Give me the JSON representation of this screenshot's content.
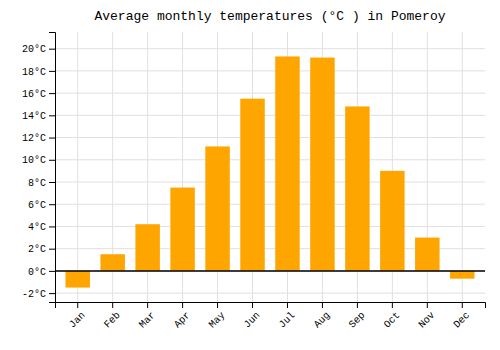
{
  "chart_data": {
    "type": "bar",
    "title": "Average monthly temperatures (°C ) in Pomeroy",
    "categories": [
      "Jan",
      "Feb",
      "Mar",
      "Apr",
      "May",
      "Jun",
      "Jul",
      "Aug",
      "Sep",
      "Oct",
      "Nov",
      "Dec"
    ],
    "values": [
      -1.5,
      1.5,
      4.2,
      7.5,
      11.2,
      15.5,
      19.3,
      19.2,
      14.8,
      9.0,
      3.0,
      -0.7
    ],
    "color": "#FFA500",
    "ylim": [
      -2.8,
      21.5
    ],
    "yticks": [
      {
        "value": -2,
        "label": "-2°C"
      },
      {
        "value": 0,
        "label": "0°C"
      },
      {
        "value": 2,
        "label": "2°C"
      },
      {
        "value": 4,
        "label": "4°C"
      },
      {
        "value": 6,
        "label": "6°C"
      },
      {
        "value": 8,
        "label": "8°C"
      },
      {
        "value": 10,
        "label": "10°C"
      },
      {
        "value": 12,
        "label": "12°C"
      },
      {
        "value": 14,
        "label": "14°C"
      },
      {
        "value": 16,
        "label": "16°C"
      },
      {
        "value": 18,
        "label": "18°C"
      },
      {
        "value": 20,
        "label": "20°C"
      }
    ],
    "grid": true
  }
}
